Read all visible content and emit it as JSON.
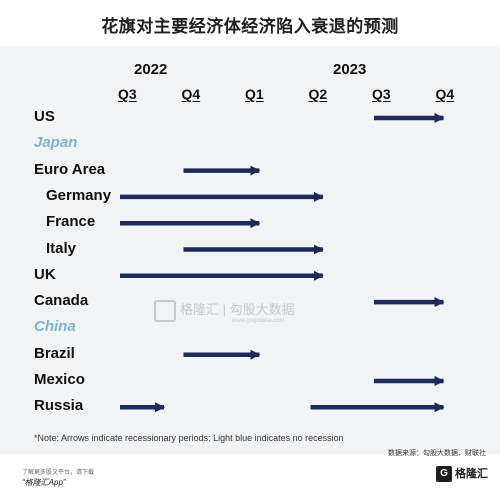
{
  "header": {
    "title": "花旗对主要经济体经济陷入衰退的预测"
  },
  "colors": {
    "arrow": "#1b2a5a",
    "no_recession_label": "#7fb3d5",
    "panel_background": "#f2f3f5"
  },
  "footnote": "*Note: Arrows indicate recessionary periods; Light blue indicates no recession",
  "source": "数据来源：勾股大数据、财联社",
  "watermark": {
    "brand": "格隆汇 | 勾股大数据",
    "url": "www.gogudata.com"
  },
  "footer": {
    "caption": "了解更多股文平台，请下载",
    "app": "“格隆汇App”",
    "logo": "格隆汇"
  },
  "chart_data": {
    "type": "gantt",
    "title": "花旗对主要经济体经济陷入衰退的预测",
    "years": [
      {
        "label": "2022",
        "quarters": [
          "Q3",
          "Q4"
        ]
      },
      {
        "label": "2023",
        "quarters": [
          "Q1",
          "Q2",
          "Q3",
          "Q4"
        ]
      }
    ],
    "x_axis": [
      "Q3",
      "Q4",
      "Q1",
      "Q2",
      "Q3",
      "Q4"
    ],
    "rows": [
      {
        "name": "US",
        "no_recession": false,
        "indent": false,
        "periods": [
          [
            4.0,
            5.0
          ]
        ]
      },
      {
        "name": "Japan",
        "no_recession": true,
        "indent": false,
        "periods": []
      },
      {
        "name": "Euro Area",
        "no_recession": false,
        "indent": false,
        "periods": [
          [
            1.0,
            2.1
          ]
        ]
      },
      {
        "name": "Germany",
        "no_recession": false,
        "indent": true,
        "periods": [
          [
            0.0,
            3.1
          ]
        ]
      },
      {
        "name": "France",
        "no_recession": false,
        "indent": true,
        "periods": [
          [
            0.0,
            2.1
          ]
        ]
      },
      {
        "name": "Italy",
        "no_recession": false,
        "indent": true,
        "periods": [
          [
            1.0,
            3.1
          ]
        ]
      },
      {
        "name": "UK",
        "no_recession": false,
        "indent": false,
        "periods": [
          [
            0.0,
            3.1
          ]
        ]
      },
      {
        "name": "Canada",
        "no_recession": false,
        "indent": false,
        "periods": [
          [
            4.0,
            5.0
          ]
        ]
      },
      {
        "name": "China",
        "no_recession": true,
        "indent": false,
        "periods": []
      },
      {
        "name": "Brazil",
        "no_recession": false,
        "indent": false,
        "periods": [
          [
            1.0,
            2.1
          ]
        ]
      },
      {
        "name": "Mexico",
        "no_recession": false,
        "indent": false,
        "periods": [
          [
            4.0,
            5.0
          ]
        ]
      },
      {
        "name": "Russia",
        "no_recession": false,
        "indent": false,
        "periods": [
          [
            0.0,
            0.6
          ],
          [
            3.0,
            5.0
          ]
        ]
      }
    ]
  }
}
